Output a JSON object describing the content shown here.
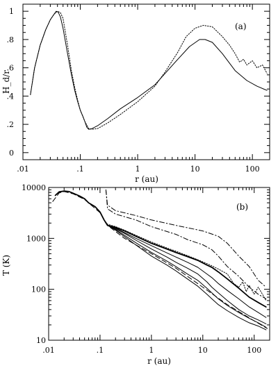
{
  "chart_data": [
    {
      "panel": "(a)",
      "type": "line",
      "xlabel": "r (au)",
      "ylabel": "H_d/r",
      "xscale": "log",
      "xlim": [
        0.01,
        200
      ],
      "ylim": [
        -0.05,
        1.05
      ],
      "x_ticks": [
        0.01,
        0.1,
        1,
        10,
        100
      ],
      "x_tick_labels": [
        ".01",
        ".1",
        "1",
        "10",
        "100"
      ],
      "y_ticks": [
        0,
        0.2,
        0.4,
        0.6,
        0.8,
        1.0
      ],
      "y_tick_labels": [
        "0",
        ".2",
        ".4",
        ".6",
        ".8",
        "1"
      ],
      "grid": false,
      "series": [
        {
          "style": "solid",
          "points": [
            [
              0.0135,
              0.41
            ],
            [
              0.016,
              0.6
            ],
            [
              0.02,
              0.76
            ],
            [
              0.025,
              0.87
            ],
            [
              0.03,
              0.94
            ],
            [
              0.035,
              0.98
            ],
            [
              0.038,
              1.0
            ],
            [
              0.041,
              0.995
            ],
            [
              0.045,
              0.96
            ],
            [
              0.05,
              0.88
            ],
            [
              0.06,
              0.7
            ],
            [
              0.07,
              0.55
            ],
            [
              0.08,
              0.44
            ],
            [
              0.09,
              0.36
            ],
            [
              0.1,
              0.3
            ],
            [
              0.11,
              0.26
            ],
            [
              0.12,
              0.22
            ],
            [
              0.13,
              0.18
            ],
            [
              0.14,
              0.165
            ],
            [
              0.16,
              0.17
            ],
            [
              0.2,
              0.19
            ],
            [
              0.3,
              0.24
            ],
            [
              0.5,
              0.31
            ],
            [
              1,
              0.39
            ],
            [
              2,
              0.48
            ],
            [
              3,
              0.56
            ],
            [
              5,
              0.66
            ],
            [
              8,
              0.75
            ],
            [
              12,
              0.8
            ],
            [
              15,
              0.8
            ],
            [
              20,
              0.78
            ],
            [
              30,
              0.7
            ],
            [
              50,
              0.58
            ],
            [
              80,
              0.51
            ],
            [
              120,
              0.47
            ],
            [
              180,
              0.44
            ]
          ]
        },
        {
          "style": "dotted",
          "points": [
            [
              0.0135,
              0.41
            ],
            [
              0.016,
              0.6
            ],
            [
              0.02,
              0.76
            ],
            [
              0.025,
              0.87
            ],
            [
              0.03,
              0.94
            ],
            [
              0.035,
              0.98
            ],
            [
              0.04,
              1.0
            ],
            [
              0.045,
              0.99
            ],
            [
              0.05,
              0.95
            ],
            [
              0.06,
              0.76
            ],
            [
              0.07,
              0.58
            ],
            [
              0.08,
              0.46
            ],
            [
              0.09,
              0.37
            ],
            [
              0.1,
              0.3
            ],
            [
              0.12,
              0.22
            ],
            [
              0.14,
              0.17
            ],
            [
              0.16,
              0.165
            ],
            [
              0.2,
              0.17
            ],
            [
              0.3,
              0.21
            ],
            [
              0.5,
              0.27
            ],
            [
              1,
              0.36
            ],
            [
              2,
              0.47
            ],
            [
              3,
              0.57
            ],
            [
              5,
              0.71
            ],
            [
              7,
              0.82
            ],
            [
              10,
              0.88
            ],
            [
              14,
              0.9
            ],
            [
              20,
              0.89
            ],
            [
              30,
              0.82
            ],
            [
              40,
              0.76
            ],
            [
              50,
              0.7
            ],
            [
              60,
              0.64
            ],
            [
              70,
              0.66
            ],
            [
              80,
              0.62
            ],
            [
              100,
              0.65
            ],
            [
              120,
              0.6
            ],
            [
              150,
              0.62
            ],
            [
              180,
              0.56
            ]
          ]
        }
      ]
    },
    {
      "panel": "(b)",
      "type": "line",
      "xlabel": "r (au)",
      "ylabel": "T (K)",
      "xscale": "log",
      "yscale": "log",
      "xlim": [
        0.01,
        200
      ],
      "ylim": [
        10,
        10000
      ],
      "x_ticks": [
        0.01,
        0.1,
        1,
        10,
        100
      ],
      "x_tick_labels": [
        ".01",
        ".1",
        "1",
        "10",
        "100"
      ],
      "y_ticks": [
        10,
        100,
        1000,
        10000
      ],
      "y_tick_labels": [
        "10",
        "100",
        "1000",
        "10000"
      ],
      "grid": false,
      "series": [
        {
          "style": "solid-thick",
          "points": [
            [
              0.0135,
              7000
            ],
            [
              0.016,
              8200
            ],
            [
              0.02,
              8500
            ],
            [
              0.025,
              8300
            ],
            [
              0.03,
              7700
            ],
            [
              0.04,
              6800
            ],
            [
              0.05,
              6000
            ],
            [
              0.06,
              5000
            ],
            [
              0.08,
              4200
            ],
            [
              0.1,
              3300
            ],
            [
              0.12,
              2300
            ],
            [
              0.14,
              1800
            ],
            [
              0.2,
              1650
            ],
            [
              0.3,
              1400
            ],
            [
              0.5,
              1100
            ],
            [
              1,
              800
            ],
            [
              2,
              620
            ],
            [
              3,
              530
            ],
            [
              5,
              440
            ],
            [
              8,
              370
            ],
            [
              12,
              300
            ],
            [
              15,
              270
            ],
            [
              20,
              220
            ],
            [
              30,
              160
            ],
            [
              50,
              105
            ],
            [
              80,
              70
            ],
            [
              120,
              55
            ],
            [
              170,
              45
            ]
          ]
        },
        {
          "style": "solid",
          "points": [
            [
              0.14,
              1800
            ],
            [
              0.2,
              1600
            ],
            [
              0.3,
              1300
            ],
            [
              0.5,
              1000
            ],
            [
              1,
              720
            ],
            [
              2,
              520
            ],
            [
              3,
              430
            ],
            [
              5,
              340
            ],
            [
              8,
              270
            ],
            [
              12,
              200
            ],
            [
              15,
              170
            ],
            [
              20,
              130
            ],
            [
              30,
              95
            ],
            [
              50,
              65
            ],
            [
              80,
              45
            ],
            [
              120,
              35
            ],
            [
              170,
              28
            ]
          ]
        },
        {
          "style": "solid",
          "points": [
            [
              0.14,
              1800
            ],
            [
              0.2,
              1550
            ],
            [
              0.3,
              1250
            ],
            [
              0.5,
              920
            ],
            [
              1,
              620
            ],
            [
              2,
              430
            ],
            [
              3,
              340
            ],
            [
              5,
              260
            ],
            [
              8,
              200
            ],
            [
              12,
              140
            ],
            [
              15,
              110
            ],
            [
              20,
              85
            ],
            [
              30,
              60
            ],
            [
              50,
              40
            ],
            [
              80,
              30
            ],
            [
              120,
              25
            ],
            [
              170,
              21
            ]
          ]
        },
        {
          "style": "solid",
          "points": [
            [
              0.14,
              1800
            ],
            [
              0.2,
              1500
            ],
            [
              0.3,
              1150
            ],
            [
              0.5,
              820
            ],
            [
              1,
              530
            ],
            [
              2,
              360
            ],
            [
              3,
              280
            ],
            [
              5,
              200
            ],
            [
              8,
              150
            ],
            [
              12,
              105
            ],
            [
              15,
              85
            ],
            [
              20,
              65
            ],
            [
              30,
              48
            ],
            [
              50,
              35
            ],
            [
              80,
              27
            ],
            [
              120,
              22
            ],
            [
              170,
              18
            ]
          ]
        },
        {
          "style": "solid",
          "points": [
            [
              0.14,
              1800
            ],
            [
              0.2,
              1450
            ],
            [
              0.3,
              1080
            ],
            [
              0.5,
              740
            ],
            [
              1,
              450
            ],
            [
              2,
              300
            ],
            [
              3,
              230
            ],
            [
              5,
              160
            ],
            [
              8,
              115
            ],
            [
              12,
              80
            ],
            [
              15,
              65
            ],
            [
              20,
              50
            ],
            [
              30,
              38
            ],
            [
              50,
              28
            ],
            [
              80,
              22
            ],
            [
              120,
              19
            ],
            [
              170,
              16
            ]
          ]
        },
        {
          "style": "dotted",
          "points": [
            [
              0.12,
              2300
            ],
            [
              0.14,
              1900
            ],
            [
              0.2,
              1700
            ],
            [
              0.3,
              1450
            ],
            [
              0.5,
              1150
            ],
            [
              1,
              850
            ],
            [
              2,
              650
            ],
            [
              3,
              560
            ],
            [
              5,
              460
            ],
            [
              8,
              380
            ],
            [
              12,
              320
            ],
            [
              15,
              290
            ],
            [
              20,
              250
            ],
            [
              30,
              200
            ],
            [
              40,
              130
            ],
            [
              50,
              110
            ],
            [
              60,
              140
            ],
            [
              70,
              90
            ],
            [
              80,
              120
            ],
            [
              100,
              80
            ],
            [
              120,
              110
            ],
            [
              150,
              75
            ],
            [
              170,
              60
            ]
          ]
        },
        {
          "style": "dashed",
          "points": [
            [
              0.012,
              5300
            ],
            [
              0.016,
              7800
            ],
            [
              0.02,
              8300
            ],
            [
              0.03,
              7500
            ],
            [
              0.05,
              5800
            ],
            [
              0.1,
              3200
            ],
            [
              0.14,
              1800
            ],
            [
              0.3,
              1000
            ],
            [
              1,
              500
            ],
            [
              3,
              260
            ],
            [
              10,
              110
            ],
            [
              30,
              50
            ],
            [
              100,
              24
            ],
            [
              180,
              17
            ]
          ]
        },
        {
          "style": "dash-dot",
          "points": [
            [
              0.13,
              9000
            ],
            [
              0.14,
              4500
            ],
            [
              0.2,
              3500
            ],
            [
              0.5,
              2800
            ],
            [
              1,
              2300
            ],
            [
              3,
              1800
            ],
            [
              10,
              1400
            ],
            [
              20,
              1100
            ],
            [
              30,
              800
            ],
            [
              50,
              450
            ],
            [
              80,
              280
            ],
            [
              120,
              150
            ],
            [
              170,
              110
            ]
          ]
        },
        {
          "style": "dash-dot",
          "points": [
            [
              0.13,
              9000
            ],
            [
              0.14,
              3800
            ],
            [
              0.2,
              3000
            ],
            [
              0.5,
              2300
            ],
            [
              1,
              1700
            ],
            [
              3,
              1200
            ],
            [
              5,
              950
            ],
            [
              10,
              750
            ],
            [
              15,
              600
            ],
            [
              20,
              450
            ],
            [
              30,
              280
            ],
            [
              50,
              180
            ],
            [
              80,
              110
            ],
            [
              120,
              80
            ],
            [
              170,
              65
            ]
          ]
        }
      ]
    }
  ]
}
